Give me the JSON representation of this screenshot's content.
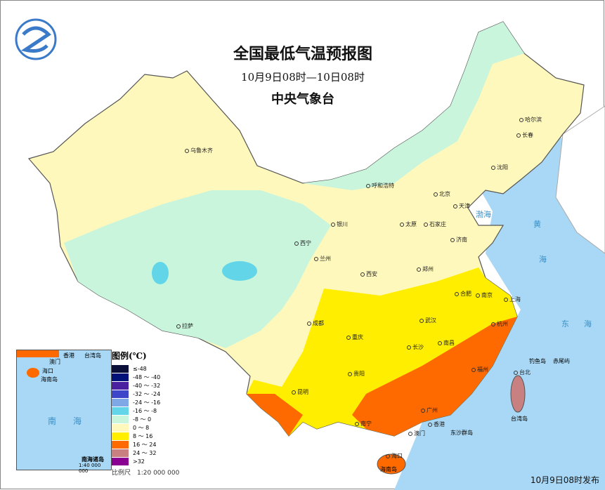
{
  "title": "全国最低气温预报图",
  "period": "10月9日08时—10日08时",
  "issuer": "中央气象台",
  "publish": "10月9日08时发布",
  "legend": {
    "title": "图例(℃)",
    "items": [
      {
        "label": "≤-48",
        "color": "#0a0f3a"
      },
      {
        "label": "-48 ～ -40",
        "color": "#00127a"
      },
      {
        "label": "-40 ～ -32",
        "color": "#4b20a0"
      },
      {
        "label": "-32 ～ -24",
        "color": "#3d45c8"
      },
      {
        "label": "-24 ～ -16",
        "color": "#7fa8e6"
      },
      {
        "label": "-16 ～ -8",
        "color": "#62d6e8"
      },
      {
        "label": "-8 ～ 0",
        "color": "#c8f5dc"
      },
      {
        "label": "0 ～ 8",
        "color": "#fff8bc"
      },
      {
        "label": "8 ～ 16",
        "color": "#ffee00"
      },
      {
        "label": "16 ～ 24",
        "color": "#ff6a00"
      },
      {
        "label": "24 ～ 32",
        "color": "#c88080"
      },
      {
        "label": ">32",
        "color": "#8a0090"
      }
    ],
    "scale": "比例尺　1:20 000 000"
  },
  "inset": {
    "labels": [
      "香港",
      "澳门",
      "台湾岛",
      "海口",
      "海南岛",
      "南",
      "海",
      "南海诸岛"
    ],
    "scale": "1:40 000 000"
  },
  "cities": [
    "乌鲁木齐",
    "拉萨",
    "西宁",
    "兰州",
    "银川",
    "呼和浩特",
    "北京",
    "天津",
    "石家庄",
    "太原",
    "济南",
    "郑州",
    "西安",
    "合肥",
    "南京",
    "上海",
    "杭州",
    "武汉",
    "成都",
    "重庆",
    "长沙",
    "南昌",
    "福州",
    "台北",
    "贵阳",
    "昆明",
    "南宁",
    "广州",
    "香港",
    "澳门",
    "海口",
    "哈尔滨",
    "长春",
    "沈阳"
  ],
  "places": [
    "海南岛",
    "东沙群岛",
    "钓鱼岛",
    "赤尾屿",
    "台湾岛"
  ],
  "seas": [
    "渤海",
    "黄",
    "海",
    "东",
    "海"
  ]
}
